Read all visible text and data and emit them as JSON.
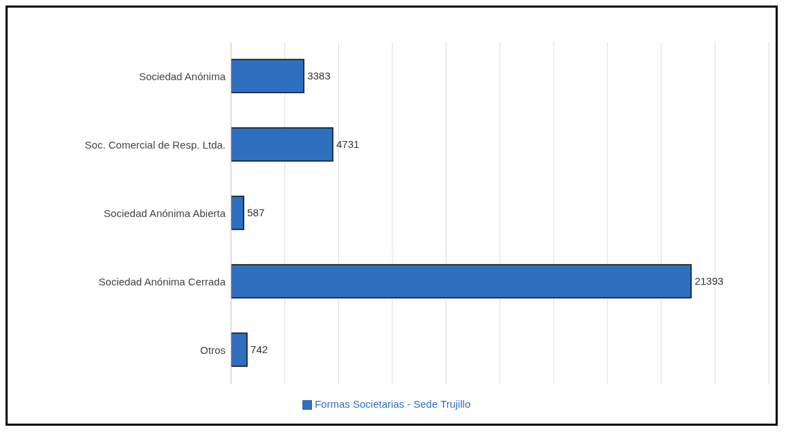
{
  "chart_data": {
    "type": "bar",
    "orientation": "horizontal",
    "categories": [
      "Sociedad Anónima",
      "Soc. Comercial de Resp. Ltda.",
      "Sociedad Anónima Abierta",
      "Sociedad Anónima Cerrada",
      "Otros"
    ],
    "series": [
      {
        "name": "Formas Societarias - Sede Trujillo",
        "color": "#2e6fc0",
        "values": [
          3383,
          4731,
          587,
          21393,
          742
        ]
      }
    ],
    "tick_labels": "y",
    "grid": "x",
    "legend": "bottom",
    "data_labels": true
  }
}
